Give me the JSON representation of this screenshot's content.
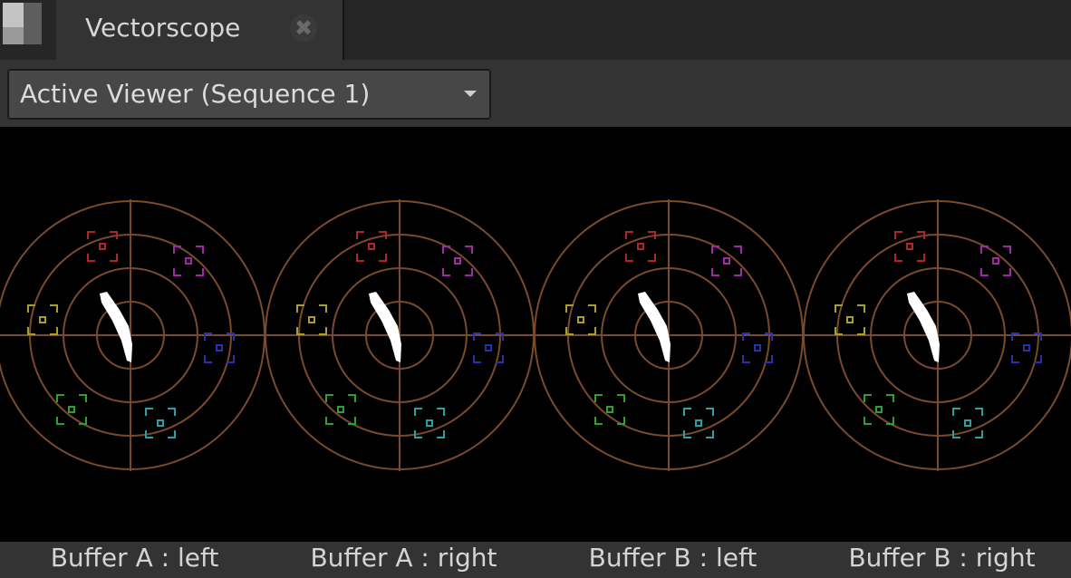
{
  "tab": {
    "title": "Vectorscope",
    "close_icon": "close-icon"
  },
  "toolbar": {
    "viewer_select": "Active Viewer (Sequence 1)"
  },
  "scopes": [
    {
      "label": "Buffer A : left"
    },
    {
      "label": "Buffer A : right"
    },
    {
      "label": "Buffer B : left"
    },
    {
      "label": "Buffer B : right"
    }
  ],
  "colors": {
    "graticule": "#7a4a2c",
    "trace": "#ffffff",
    "targets": {
      "R": "#b0242a",
      "Mg": "#a02aa6",
      "B": "#2e2ea8",
      "Cy": "#2aa0a0",
      "G": "#2ea02e",
      "Yl": "#a8a02a"
    }
  }
}
